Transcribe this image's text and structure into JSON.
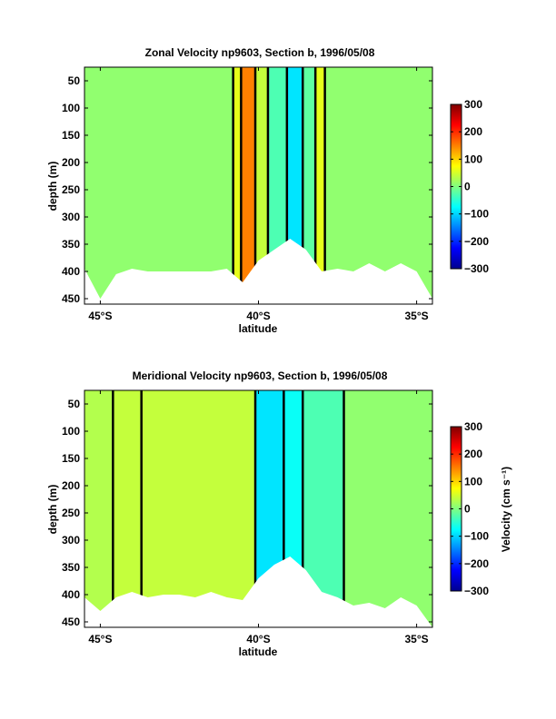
{
  "chart_data": [
    {
      "type": "heatmap",
      "subtype": "filled-contour section",
      "title": "Zonal Velocity np9603, Section b, 1996/05/08",
      "xlabel": "latitude",
      "ylabel": "depth (m)",
      "xlim": [
        -45.5,
        -34.5
      ],
      "ylim": [
        460,
        25
      ],
      "x_ticks": [
        -45,
        -40,
        -35
      ],
      "x_tick_labels": [
        "45°S",
        "40°S",
        "35°S"
      ],
      "y_ticks": [
        50,
        100,
        150,
        200,
        250,
        300,
        350,
        400,
        450
      ],
      "y_tick_labels": [
        "50",
        "100",
        "150",
        "200",
        "250",
        "300",
        "350",
        "400",
        "450"
      ],
      "colorbar": {
        "label": "",
        "limits": [
          -300,
          300
        ],
        "ticks": [
          -300,
          -200,
          -100,
          0,
          100,
          200,
          300
        ],
        "tick_labels": [
          "−300",
          "−200",
          "−100",
          "0",
          "100",
          "200",
          "300"
        ]
      },
      "bottom_depth_profile": {
        "lat": [
          -45.5,
          -45.0,
          -44.5,
          -44.0,
          -43.5,
          -43.0,
          -42.5,
          -42.0,
          -41.5,
          -41.0,
          -40.5,
          -40.0,
          -39.5,
          -39.0,
          -38.5,
          -38.0,
          -37.5,
          -37.0,
          -36.5,
          -36.0,
          -35.5,
          -35.0,
          -34.5
        ],
        "depth": [
          395,
          450,
          405,
          395,
          400,
          400,
          400,
          400,
          400,
          395,
          420,
          380,
          360,
          340,
          360,
          400,
          395,
          400,
          385,
          400,
          385,
          400,
          450
        ]
      },
      "bands": [
        {
          "lat": [
            -45.5,
            -40.8
          ],
          "value": 10
        },
        {
          "lat": [
            -40.8,
            -40.55
          ],
          "value": 60
        },
        {
          "lat": [
            -40.55,
            -40.1
          ],
          "value": 150
        },
        {
          "lat": [
            -40.1,
            -39.7
          ],
          "value": 40
        },
        {
          "lat": [
            -39.7,
            -39.1
          ],
          "value": -30
        },
        {
          "lat": [
            -39.1,
            -38.6
          ],
          "value": -90
        },
        {
          "lat": [
            -38.6,
            -38.2
          ],
          "value": -20
        },
        {
          "lat": [
            -38.2,
            -37.9
          ],
          "value": 60
        },
        {
          "lat": [
            -37.9,
            -34.5
          ],
          "value": 10
        }
      ]
    },
    {
      "type": "heatmap",
      "subtype": "filled-contour section",
      "title": "Meridional Velocity np9603, Section b, 1996/05/08",
      "xlabel": "latitude",
      "ylabel": "depth (m)",
      "xlim": [
        -45.5,
        -34.5
      ],
      "ylim": [
        460,
        25
      ],
      "x_ticks": [
        -45,
        -40,
        -35
      ],
      "x_tick_labels": [
        "45°S",
        "40°S",
        "35°S"
      ],
      "y_ticks": [
        50,
        100,
        150,
        200,
        250,
        300,
        350,
        400,
        450
      ],
      "y_tick_labels": [
        "50",
        "100",
        "150",
        "200",
        "250",
        "300",
        "350",
        "400",
        "450"
      ],
      "colorbar": {
        "label": "Velocity (cm s⁻¹)",
        "limits": [
          -300,
          300
        ],
        "ticks": [
          -300,
          -200,
          -100,
          0,
          100,
          200,
          300
        ],
        "tick_labels": [
          "−300",
          "−200",
          "−100",
          "0",
          "100",
          "200",
          "300"
        ]
      },
      "bottom_depth_profile": {
        "lat": [
          -45.5,
          -45.0,
          -44.5,
          -44.0,
          -43.5,
          -43.0,
          -42.5,
          -42.0,
          -41.5,
          -41.0,
          -40.5,
          -40.0,
          -39.5,
          -39.0,
          -38.5,
          -38.0,
          -37.5,
          -37.0,
          -36.5,
          -36.0,
          -35.5,
          -35.0,
          -34.5
        ],
        "depth": [
          405,
          430,
          405,
          395,
          405,
          400,
          400,
          405,
          395,
          405,
          410,
          370,
          345,
          330,
          355,
          395,
          405,
          420,
          415,
          425,
          405,
          420,
          460
        ]
      },
      "bands": [
        {
          "lat": [
            -45.5,
            -44.6
          ],
          "value": 30
        },
        {
          "lat": [
            -44.6,
            -43.7
          ],
          "value": 40
        },
        {
          "lat": [
            -43.7,
            -40.1
          ],
          "value": 40
        },
        {
          "lat": [
            -40.1,
            -39.2
          ],
          "value": -90
        },
        {
          "lat": [
            -39.2,
            -38.6
          ],
          "value": -70
        },
        {
          "lat": [
            -38.6,
            -37.3
          ],
          "value": -30
        },
        {
          "lat": [
            -37.3,
            -34.5
          ],
          "value": 10
        }
      ]
    }
  ]
}
